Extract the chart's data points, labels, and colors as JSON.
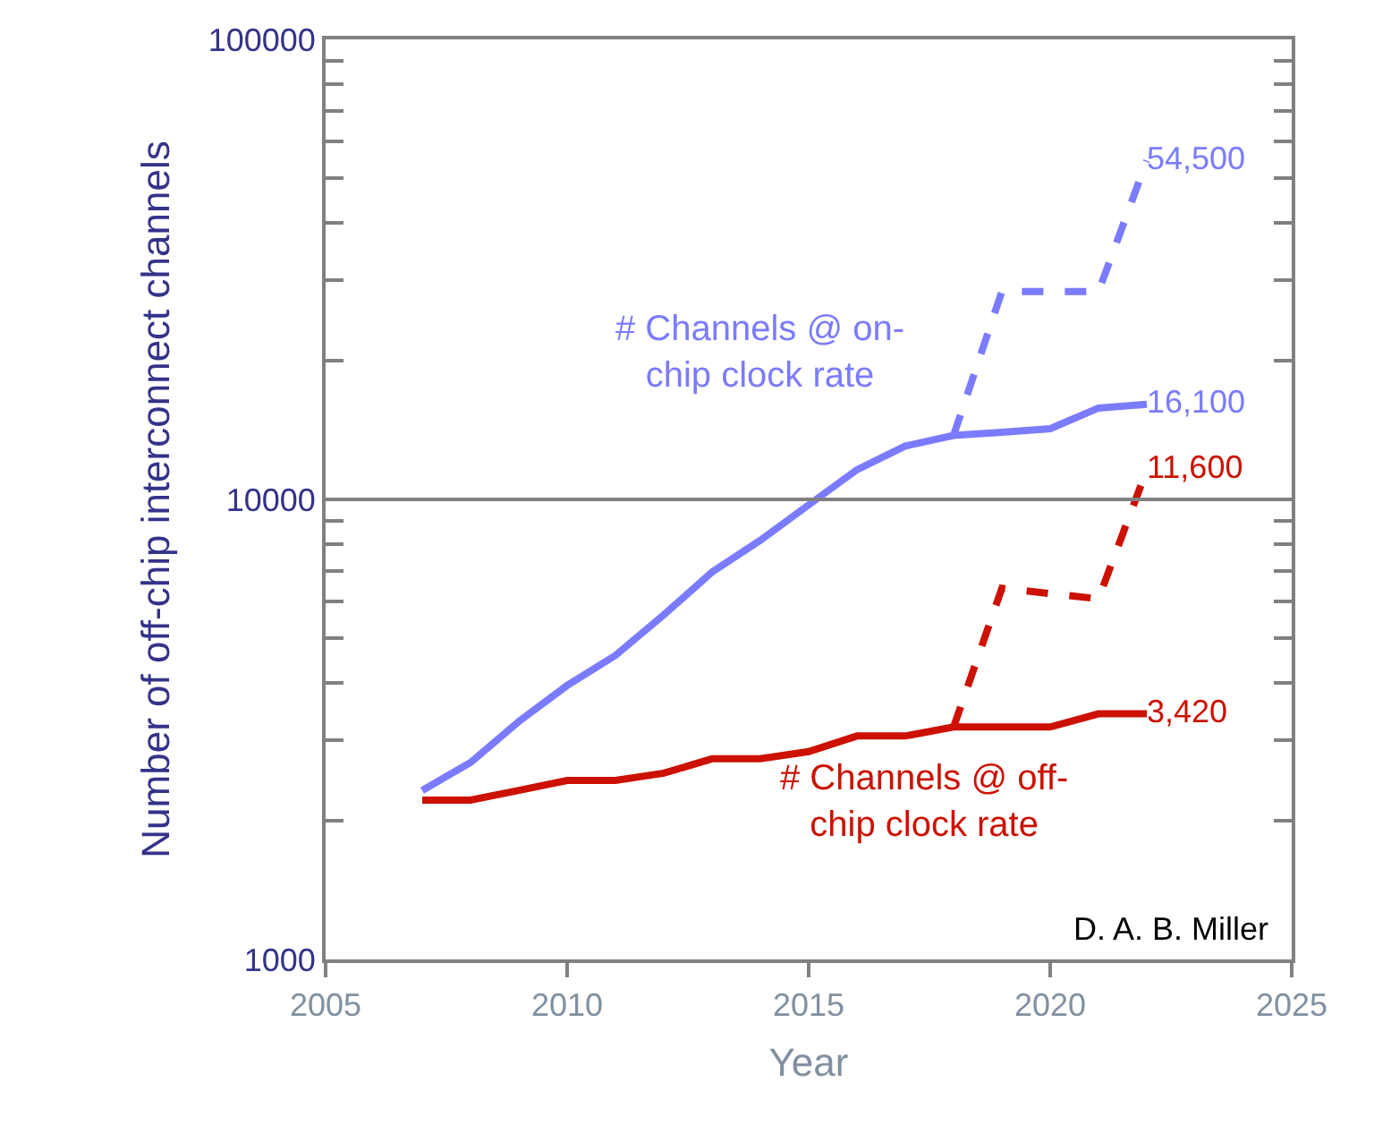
{
  "chart_data": {
    "type": "line",
    "xlabel": "Year",
    "ylabel": "Number of off-chip interconnect channels",
    "log": "y",
    "xlim": [
      2005,
      2025
    ],
    "xticks": [
      2005,
      2010,
      2015,
      2020,
      2025
    ],
    "ylim": [
      1000,
      100000
    ],
    "yticks": [
      1000,
      {
        "value": 2000,
        "label": null
      },
      {
        "value": 3000,
        "label": null
      },
      {
        "value": 4000,
        "label": null
      },
      {
        "value": 5000,
        "label": null
      },
      {
        "value": 6000,
        "label": null
      },
      {
        "value": 7000,
        "label": null
      },
      {
        "value": 8000,
        "label": null
      },
      {
        "value": 9000,
        "label": null
      },
      10000,
      {
        "value": 20000,
        "label": null
      },
      {
        "value": 30000,
        "label": null
      },
      {
        "value": 40000,
        "label": null
      },
      {
        "value": 50000,
        "label": null
      },
      {
        "value": 60000,
        "label": null
      },
      {
        "value": 70000,
        "label": null
      },
      {
        "value": 80000,
        "label": null
      },
      {
        "value": 90000,
        "label": null
      },
      100000
    ],
    "marker": "none",
    "series": [
      {
        "color": "#7b7bff",
        "line_style": "solid",
        "x": [
          2007,
          2008,
          2009,
          2010,
          2011,
          2012,
          2013,
          2014,
          2015,
          2016,
          2017,
          2018,
          2019,
          2020,
          2021,
          2022
        ],
        "values": [
          2330,
          2680,
          3290,
          3940,
          4580,
          5610,
          6950,
          8150,
          9730,
          11600,
          13060,
          13770,
          14000,
          14250,
          15800,
          16100
        ],
        "value_labels": [
          null,
          null,
          null,
          null,
          null,
          null,
          null,
          null,
          null,
          null,
          null,
          null,
          null,
          null,
          null,
          "16,100"
        ]
      },
      {
        "color": "#7b7bff",
        "line_style": "dashed",
        "x": [
          2018,
          2019,
          2021,
          2022
        ],
        "values": [
          13770,
          28300,
          28300,
          54500
        ],
        "value_labels": [
          null,
          null,
          null,
          "54,500"
        ]
      },
      {
        "color": "#cc1100",
        "line_style": "solid",
        "x": [
          2007,
          2008,
          2009,
          2010,
          2011,
          2012,
          2013,
          2014,
          2015,
          2016,
          2017,
          2018,
          2019,
          2020,
          2021,
          2022
        ],
        "values": [
          2220,
          2220,
          2330,
          2450,
          2450,
          2540,
          2730,
          2730,
          2830,
          3060,
          3060,
          3200,
          3200,
          3200,
          3420,
          3420
        ],
        "value_labels": [
          null,
          null,
          null,
          null,
          null,
          null,
          null,
          null,
          null,
          null,
          null,
          null,
          null,
          null,
          null,
          "3,420"
        ]
      },
      {
        "color": "#cc1100",
        "line_style": "dashed",
        "x": [
          2018,
          2019,
          2021,
          2022
        ],
        "values": [
          3200,
          6410,
          6080,
          11600
        ],
        "value_labels": [
          null,
          null,
          null,
          "11,600"
        ]
      }
    ],
    "ref_lines": [
      {
        "axis": "y",
        "value": 10000,
        "color": "#808080"
      }
    ],
    "annotations": [
      "# Channels @ on-\nchip clock rate",
      "# Channels @ off-\nchip clock rate",
      "D. A. B. Miller"
    ]
  }
}
